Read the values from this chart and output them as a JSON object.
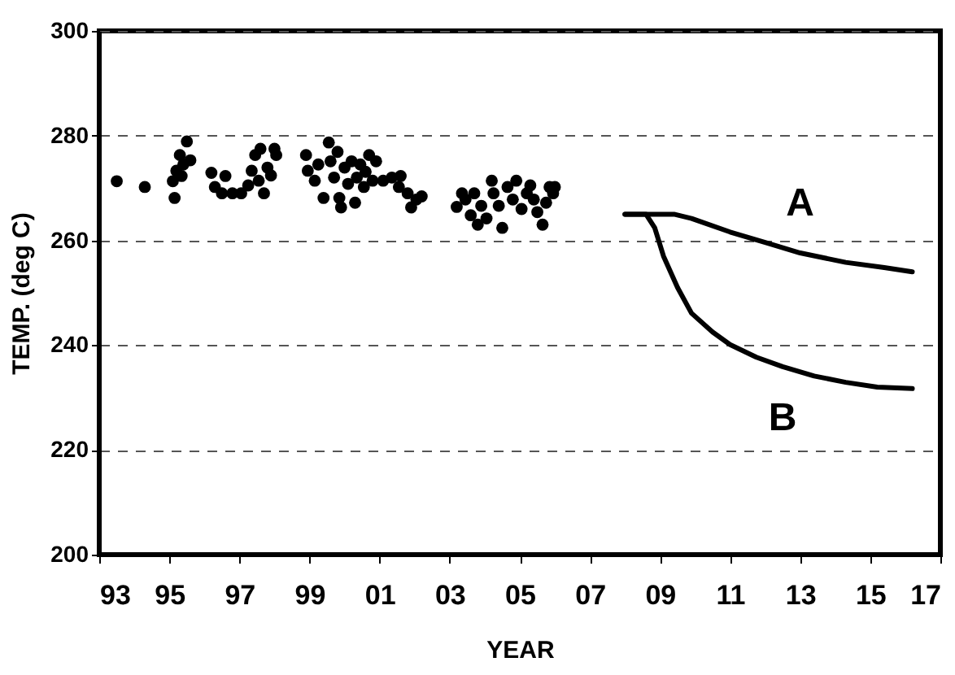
{
  "chart_data": {
    "type": "scatter",
    "xlabel": "YEAR",
    "ylabel": "TEMP. (deg C)",
    "xlim": [
      1993,
      2017
    ],
    "ylim": [
      200,
      300
    ],
    "xticks": [
      {
        "value": 1993,
        "label": "93"
      },
      {
        "value": 1995,
        "label": "95"
      },
      {
        "value": 1997,
        "label": "97"
      },
      {
        "value": 1999,
        "label": "99"
      },
      {
        "value": 2001,
        "label": "01"
      },
      {
        "value": 2003,
        "label": "03"
      },
      {
        "value": 2005,
        "label": "05"
      },
      {
        "value": 2007,
        "label": "07"
      },
      {
        "value": 2009,
        "label": "09"
      },
      {
        "value": 2011,
        "label": "11"
      },
      {
        "value": 2013,
        "label": "13"
      },
      {
        "value": 2015,
        "label": "15"
      },
      {
        "value": 2017,
        "label": "17"
      }
    ],
    "yticks": [
      200,
      220,
      240,
      260,
      280,
      300
    ],
    "grid": "y",
    "series": [
      {
        "color": "#000000",
        "marker": "circle",
        "x": [
          1993.5,
          1994.3,
          1995.15,
          1995.1,
          1995.2,
          1995.3,
          1995.4,
          1995.5,
          1995.6,
          1995.35,
          1996.2,
          1996.3,
          1996.5,
          1996.6,
          1996.8,
          1997.05,
          1997.25,
          1997.35,
          1997.45,
          1997.55,
          1997.6,
          1997.7,
          1997.8,
          1997.9,
          1998.0,
          1998.05,
          1998.9,
          1998.95,
          1999.15,
          1999.25,
          1999.4,
          1999.55,
          1999.6,
          1999.7,
          1999.8,
          1999.85,
          1999.9,
          2000.0,
          2000.1,
          2000.2,
          2000.3,
          2000.35,
          2000.45,
          2000.55,
          2000.6,
          2000.7,
          2000.8,
          2000.9,
          2001.1,
          2001.35,
          2001.55,
          2001.6,
          2001.8,
          2001.9,
          2002.05,
          2002.2,
          2003.2,
          2003.35,
          2003.45,
          2003.6,
          2003.7,
          2003.8,
          2003.9,
          2004.05,
          2004.2,
          2004.25,
          2004.4,
          2004.5,
          2004.65,
          2004.8,
          2004.9,
          2005.05,
          2005.2,
          2005.3,
          2005.4,
          2005.5,
          2005.65,
          2005.75,
          2005.85,
          2005.95,
          2006.0
        ],
        "values": [
          271.3,
          270.2,
          268.1,
          271.3,
          273.3,
          276.3,
          274.5,
          278.9,
          275.3,
          272.3,
          272.9,
          270.2,
          269.0,
          272.3,
          269.0,
          269.0,
          270.5,
          273.3,
          276.3,
          271.4,
          277.5,
          269.0,
          273.9,
          272.4,
          277.5,
          276.3,
          276.3,
          273.3,
          271.4,
          274.5,
          268.1,
          278.7,
          275.1,
          272.0,
          276.9,
          268.1,
          266.3,
          273.9,
          270.8,
          275.1,
          267.2,
          272.0,
          274.5,
          270.2,
          273.1,
          276.3,
          271.4,
          275.1,
          271.4,
          272.0,
          270.2,
          272.3,
          269.0,
          266.3,
          267.8,
          268.4,
          266.4,
          269.0,
          267.8,
          264.8,
          269.0,
          263.0,
          266.6,
          264.2,
          271.4,
          269.0,
          266.6,
          262.4,
          270.2,
          267.8,
          271.4,
          266.0,
          269.0,
          270.5,
          267.8,
          265.4,
          263.0,
          267.2,
          270.2,
          269.0,
          270.2
        ]
      },
      {
        "type": "line",
        "name": "A",
        "color": "#000000",
        "line_style": "solid",
        "x": [
          2008.0,
          2009.4,
          2009.9,
          2011.0,
          2012.1,
          2013.0,
          2014.3,
          2015.4,
          2016.2
        ],
        "values": [
          265.0,
          265.0,
          264.2,
          261.6,
          259.4,
          257.6,
          255.8,
          254.8,
          254.0
        ]
      },
      {
        "type": "line",
        "name": "B",
        "color": "#000000",
        "line_style": "solid",
        "x": [
          2008.0,
          2008.6,
          2008.85,
          2009.1,
          2009.5,
          2009.9,
          2010.5,
          2011.0,
          2011.75,
          2012.5,
          2013.4,
          2014.3,
          2015.2,
          2016.2
        ],
        "values": [
          265.0,
          265.0,
          262.4,
          257.0,
          251.0,
          246.1,
          242.5,
          240.1,
          237.7,
          235.9,
          234.1,
          232.9,
          232.0,
          231.7
        ]
      }
    ]
  }
}
